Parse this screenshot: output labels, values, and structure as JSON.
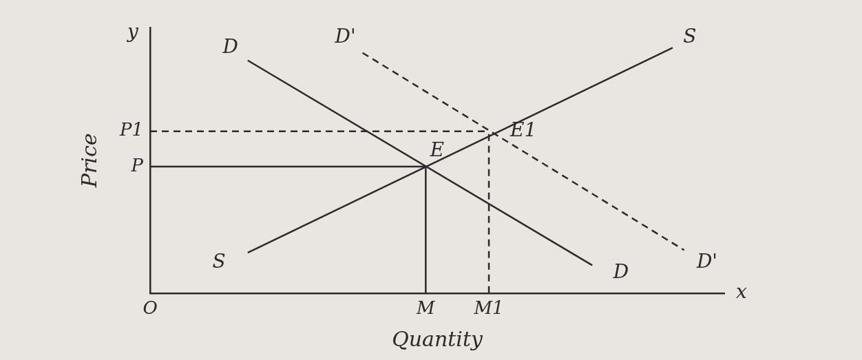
{
  "chart_data": {
    "type": "line",
    "x_label": "Quantity",
    "y_label": "Price",
    "xlim": [
      0,
      100
    ],
    "ylim": [
      0,
      105
    ],
    "xticks": [
      {
        "value": 0,
        "label": "O"
      },
      {
        "value": 48,
        "label": "M"
      },
      {
        "value": 59,
        "label": "M1"
      }
    ],
    "yticks": [
      {
        "value": 50,
        "label": "P"
      },
      {
        "value": 64,
        "label": "P1"
      }
    ],
    "grid": false,
    "color": "#2a2a2a",
    "series": [
      {
        "x": [
          17,
          77
        ],
        "values": [
          92,
          11
        ],
        "line_style": "solid"
      },
      {
        "x": [
          17,
          91
        ],
        "values": [
          16,
          97
        ],
        "line_style": "solid"
      },
      {
        "x": [
          37,
          93
        ],
        "values": [
          95,
          17
        ],
        "line_style": "dashed"
      },
      {
        "x": [
          0,
          48
        ],
        "values": [
          50,
          50
        ],
        "line_style": "solid"
      },
      {
        "x": [
          48,
          48
        ],
        "values": [
          0,
          50
        ],
        "line_style": "solid"
      },
      {
        "x": [
          0,
          59
        ],
        "values": [
          64,
          64
        ],
        "line_style": "dashed"
      },
      {
        "x": [
          59,
          59
        ],
        "values": [
          0,
          64
        ],
        "line_style": "dashed"
      }
    ],
    "annotations": [
      {
        "text": "D",
        "x": 14,
        "y": 97
      },
      {
        "text": "D",
        "x": 82,
        "y": 8
      },
      {
        "text": "S",
        "x": 12,
        "y": 12
      },
      {
        "text": "S",
        "x": 94,
        "y": 101
      },
      {
        "text": "D'",
        "x": 34,
        "y": 101
      },
      {
        "text": "D'",
        "x": 97,
        "y": 12
      },
      {
        "text": "E",
        "x": 50,
        "y": 56
      },
      {
        "text": "E1",
        "x": 65,
        "y": 64
      },
      {
        "text": "y",
        "x": -3,
        "y": 103
      },
      {
        "text": "x",
        "x": 103,
        "y": 0
      }
    ]
  }
}
